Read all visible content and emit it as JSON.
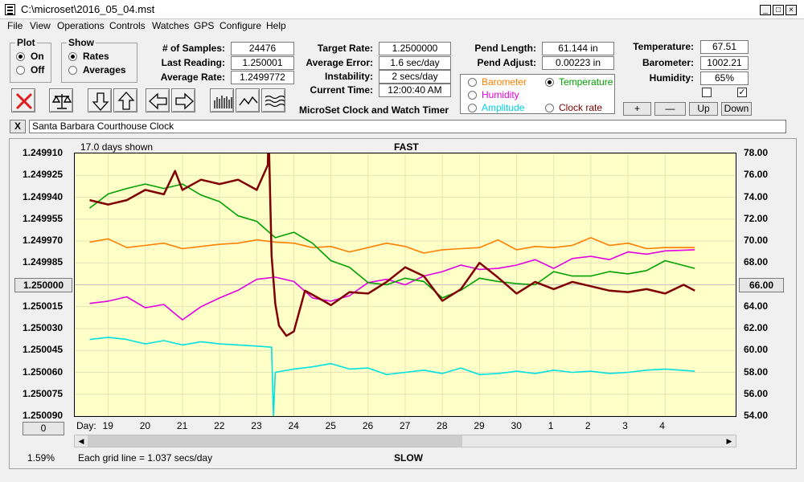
{
  "window": {
    "title": "C:\\microset\\2016_05_04.mst"
  },
  "menu": [
    "File",
    "View",
    "Operations",
    "Controls",
    "Watches",
    "GPS",
    "Configure",
    "Help"
  ],
  "plot_group": {
    "label": "Plot",
    "on": "On",
    "off": "Off"
  },
  "show_group": {
    "label": "Show",
    "rates": "Rates",
    "averages": "Averages"
  },
  "stats": {
    "samples_label": "# of Samples:",
    "samples": "24476",
    "last_label": "Last Reading:",
    "last": "1.250001",
    "avg_label": "Average Rate:",
    "avg": "1.2499772",
    "target_label": "Target Rate:",
    "target": "1.2500000",
    "avg_err_label": "Average Error:",
    "avg_err": "1.6 sec/day",
    "instab_label": "Instability:",
    "instab": "2 secs/day",
    "time_label": "Current Time:",
    "time": "12:00:40 AM",
    "app_name": "MicroSet Clock and Watch Timer",
    "pend_len_label": "Pend Length:",
    "pend_len": "61.144 in",
    "pend_adj_label": "Pend Adjust:",
    "pend_adj": "0.00223 in",
    "temp_label": "Temperature:",
    "temp": "67.51",
    "baro_label": "Barometer:",
    "baro": "1002.21",
    "hum_label": "Humidity:",
    "hum": "65%"
  },
  "sensor_radios": {
    "barometer": "Barometer",
    "temperature": "Temperature",
    "humidity": "Humidity",
    "amplitude": "Amplitude",
    "clock_rate": "Clock rate"
  },
  "scale_buttons": {
    "plus": "+",
    "minus": "—",
    "up": "Up",
    "down": "Down"
  },
  "clock_name": "Santa Barbara Courthouse Clock",
  "clear_button": "X",
  "chart": {
    "days_shown": "17.0 days shown",
    "fast": "FAST",
    "slow": "SLOW",
    "center_left": "1.250000",
    "center_right": "66.00",
    "day_label": "Day:",
    "bottom_left_btn": "0",
    "percent": "1.59%",
    "grid_note": "Each grid line = 1.037 secs/day"
  },
  "colors": {
    "rate": "#800000",
    "temperature": "#00a000",
    "barometer": "#ff8000",
    "humidity": "#e000e0",
    "amplitude": "#00e0e0",
    "plot_bg": "#ffffc8"
  },
  "chart_data": {
    "type": "line",
    "title": "",
    "xlabel": "Day",
    "x_ticks": [
      "19",
      "20",
      "21",
      "22",
      "23",
      "24",
      "25",
      "26",
      "27",
      "28",
      "29",
      "30",
      "1",
      "2",
      "3",
      "4"
    ],
    "y_left_ticks": [
      "1.249910",
      "1.249925",
      "1.249940",
      "1.249955",
      "1.249970",
      "1.249985",
      "1.250000",
      "1.250015",
      "1.250030",
      "1.250045",
      "1.250060",
      "1.250075",
      "1.250090"
    ],
    "y_right_ticks": [
      "78.00",
      "76.00",
      "74.00",
      "72.00",
      "70.00",
      "68.00",
      "66.00",
      "64.00",
      "62.00",
      "60.00",
      "58.00",
      "56.00",
      "54.00"
    ],
    "ylim_left": [
      1.24991,
      1.25009
    ],
    "ylim_right": [
      54,
      78
    ],
    "y_left_inverted": true,
    "grid": true,
    "series": [
      {
        "name": "Clock rate",
        "axis": "left",
        "color": "#800000",
        "x": [
          18.5,
          19.0,
          19.5,
          20.0,
          20.5,
          20.8,
          21.0,
          21.5,
          22.0,
          22.5,
          23.0,
          23.3,
          23.32,
          23.4,
          23.5,
          23.6,
          23.8,
          24.0,
          24.3,
          24.8,
          25.0,
          25.5,
          26.0,
          26.5,
          27.0,
          27.5,
          28.0,
          28.5,
          29.0,
          29.5,
          30.0,
          30.5,
          31.0,
          31.5,
          32.0,
          32.5,
          33.0,
          33.5,
          34.0,
          34.5,
          34.8
        ],
        "y": [
          1.249942,
          1.249945,
          1.249942,
          1.249935,
          1.249938,
          1.249922,
          1.249935,
          1.249928,
          1.249931,
          1.249928,
          1.249935,
          1.249918,
          1.249895,
          1.24998,
          1.250013,
          1.250028,
          1.250035,
          1.250032,
          1.250004,
          1.250011,
          1.250014,
          1.250005,
          1.250006,
          1.249998,
          1.249988,
          1.249994,
          1.250011,
          1.250003,
          1.249985,
          1.249995,
          1.250006,
          1.249998,
          1.250003,
          1.249998,
          1.250001,
          1.250004,
          1.250005,
          1.250003,
          1.250006,
          1.25,
          1.250004
        ]
      },
      {
        "name": "Temperature",
        "axis": "right",
        "color": "#00a000",
        "x": [
          18.5,
          19.0,
          19.5,
          20.0,
          20.5,
          21.0,
          21.5,
          22.0,
          22.5,
          23.0,
          23.5,
          24.0,
          24.5,
          25.0,
          25.5,
          26.0,
          26.5,
          27.0,
          27.5,
          28.0,
          28.5,
          29.0,
          29.5,
          30.0,
          30.5,
          31.0,
          31.5,
          32.0,
          32.5,
          33.0,
          33.5,
          34.0,
          34.8
        ],
        "y": [
          73.0,
          74.3,
          74.8,
          75.2,
          74.8,
          75.2,
          74.2,
          73.6,
          72.3,
          71.8,
          70.3,
          70.8,
          69.8,
          68.2,
          67.6,
          66.2,
          66.0,
          66.6,
          66.3,
          64.8,
          65.5,
          66.6,
          66.3,
          66.1,
          66.0,
          67.2,
          66.8,
          66.8,
          67.2,
          67.0,
          67.3,
          68.2,
          67.5
        ]
      },
      {
        "name": "Barometer",
        "axis": "right",
        "color": "#ff8000",
        "x": [
          18.5,
          19.0,
          19.5,
          20.0,
          20.5,
          21.0,
          21.5,
          22.0,
          22.5,
          23.0,
          23.5,
          24.0,
          24.5,
          25.0,
          25.5,
          26.0,
          26.5,
          27.0,
          27.5,
          28.0,
          28.5,
          29.0,
          29.5,
          30.0,
          30.5,
          31.0,
          31.5,
          32.0,
          32.5,
          33.0,
          33.5,
          34.0,
          34.8
        ],
        "y": [
          69.9,
          70.2,
          69.4,
          69.6,
          69.8,
          69.3,
          69.5,
          69.7,
          69.8,
          70.1,
          69.9,
          69.8,
          69.4,
          69.5,
          69.0,
          69.4,
          69.8,
          69.5,
          68.9,
          69.2,
          69.3,
          69.4,
          70.1,
          69.2,
          69.5,
          69.4,
          69.6,
          70.3,
          69.6,
          69.8,
          69.3,
          69.4,
          69.4
        ]
      },
      {
        "name": "Humidity",
        "axis": "right",
        "color": "#e000e0",
        "x": [
          18.5,
          19.0,
          19.5,
          20.0,
          20.5,
          21.0,
          21.5,
          22.0,
          22.5,
          23.0,
          23.5,
          24.0,
          24.5,
          25.0,
          25.5,
          26.0,
          26.5,
          27.0,
          27.5,
          28.0,
          28.5,
          29.0,
          29.5,
          30.0,
          30.5,
          31.0,
          31.5,
          32.0,
          32.5,
          33.0,
          33.5,
          34.0,
          34.8
        ],
        "y": [
          64.3,
          64.5,
          64.9,
          63.9,
          64.2,
          62.8,
          64.0,
          64.8,
          65.5,
          66.5,
          66.7,
          66.3,
          64.8,
          64.5,
          65.0,
          66.2,
          66.5,
          66.0,
          66.8,
          67.2,
          67.8,
          67.4,
          67.5,
          67.8,
          68.3,
          67.5,
          68.4,
          68.6,
          68.3,
          69.0,
          68.8,
          69.1,
          69.2
        ]
      },
      {
        "name": "Amplitude",
        "axis": "right",
        "color": "#00e0e0",
        "x": [
          18.5,
          19.0,
          19.5,
          20.0,
          20.5,
          21.0,
          21.5,
          22.0,
          22.5,
          23.0,
          23.4,
          23.45,
          23.5,
          24.0,
          24.5,
          25.0,
          25.5,
          26.0,
          26.5,
          27.0,
          27.5,
          28.0,
          28.5,
          29.0,
          29.5,
          30.0,
          30.5,
          31.0,
          31.5,
          32.0,
          32.5,
          33.0,
          33.5,
          34.0,
          34.8
        ],
        "y": [
          61.0,
          61.2,
          61.0,
          60.6,
          60.9,
          60.5,
          60.8,
          60.6,
          60.5,
          60.4,
          60.3,
          54.0,
          58.0,
          58.3,
          58.5,
          58.8,
          58.3,
          58.4,
          57.8,
          58.0,
          58.2,
          57.9,
          58.4,
          57.8,
          57.9,
          58.1,
          57.9,
          58.2,
          58.0,
          58.1,
          57.9,
          58.0,
          58.2,
          58.3,
          58.1
        ]
      }
    ]
  }
}
